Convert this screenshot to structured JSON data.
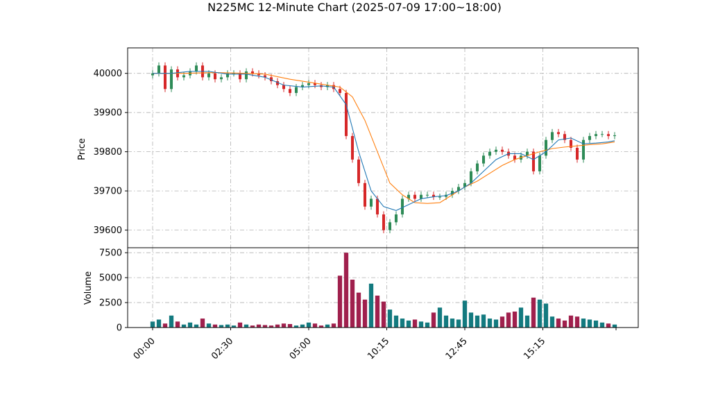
{
  "chart_data": {
    "type": "candlestick",
    "title": "N225MC 12-Minute Chart (2025-07-09 17:00~18:00)",
    "price_panel": {
      "ylabel": "Price",
      "ylim": [
        39555,
        40065
      ],
      "yticks": [
        39600,
        39700,
        39800,
        39900,
        40000
      ]
    },
    "volume_panel": {
      "ylabel": "Volume",
      "ylim": [
        0,
        8000
      ],
      "yticks": [
        0,
        2500,
        5000,
        7500
      ]
    },
    "x_ticks": [
      {
        "label": "00:00",
        "index": 0
      },
      {
        "label": "02:30",
        "index": 12.5
      },
      {
        "label": "05:00",
        "index": 25
      },
      {
        "label": "10:15",
        "index": 37.5
      },
      {
        "label": "12:45",
        "index": 50
      },
      {
        "label": "15:15",
        "index": 62.5
      }
    ],
    "grid": true,
    "colors": {
      "up": "#2e8b57",
      "down": "#d62728",
      "vol_up": "#137a7f",
      "vol_down": "#a0204d",
      "ma_short": "#1f77b4",
      "ma_long": "#ff7f0e"
    },
    "price_series": [
      {
        "i": 0,
        "v": 40000
      },
      {
        "i": 1,
        "v": 40020
      },
      {
        "i": 2,
        "v": 39960
      },
      {
        "i": 3,
        "v": 40010
      },
      {
        "i": 4,
        "v": 39990
      },
      {
        "i": 5,
        "v": 39995
      },
      {
        "i": 6,
        "v": 40005
      },
      {
        "i": 7,
        "v": 40020
      },
      {
        "i": 8,
        "v": 39990
      },
      {
        "i": 9,
        "v": 40000
      },
      {
        "i": 10,
        "v": 39985
      },
      {
        "i": 11,
        "v": 39990
      },
      {
        "i": 12,
        "v": 40000
      },
      {
        "i": 13,
        "v": 40000
      },
      {
        "i": 14,
        "v": 39985
      },
      {
        "i": 15,
        "v": 40005
      },
      {
        "i": 16,
        "v": 40000
      },
      {
        "i": 17,
        "v": 39995
      },
      {
        "i": 18,
        "v": 39990
      },
      {
        "i": 19,
        "v": 39980
      },
      {
        "i": 20,
        "v": 39970
      },
      {
        "i": 21,
        "v": 39960
      },
      {
        "i": 22,
        "v": 39950
      },
      {
        "i": 23,
        "v": 39965
      },
      {
        "i": 24,
        "v": 39970
      },
      {
        "i": 25,
        "v": 39975
      },
      {
        "i": 26,
        "v": 39970
      },
      {
        "i": 27,
        "v": 39965
      },
      {
        "i": 28,
        "v": 39970
      },
      {
        "i": 29,
        "v": 39960
      },
      {
        "i": 30,
        "v": 39950
      },
      {
        "i": 31,
        "v": 39840
      },
      {
        "i": 32,
        "v": 39780
      },
      {
        "i": 33,
        "v": 39720
      },
      {
        "i": 34,
        "v": 39660
      },
      {
        "i": 35,
        "v": 39680
      },
      {
        "i": 36,
        "v": 39640
      },
      {
        "i": 37,
        "v": 39600
      },
      {
        "i": 38,
        "v": 39620
      },
      {
        "i": 39,
        "v": 39640
      },
      {
        "i": 40,
        "v": 39680
      },
      {
        "i": 41,
        "v": 39690
      },
      {
        "i": 42,
        "v": 39680
      },
      {
        "i": 43,
        "v": 39690
      },
      {
        "i": 44,
        "v": 39690
      },
      {
        "i": 45,
        "v": 39685
      },
      {
        "i": 46,
        "v": 39685
      },
      {
        "i": 47,
        "v": 39690
      },
      {
        "i": 48,
        "v": 39700
      },
      {
        "i": 49,
        "v": 39710
      },
      {
        "i": 50,
        "v": 39720
      },
      {
        "i": 51,
        "v": 39750
      },
      {
        "i": 52,
        "v": 39770
      },
      {
        "i": 53,
        "v": 39790
      },
      {
        "i": 54,
        "v": 39800
      },
      {
        "i": 55,
        "v": 39805
      },
      {
        "i": 56,
        "v": 39800
      },
      {
        "i": 57,
        "v": 39790
      },
      {
        "i": 58,
        "v": 39780
      },
      {
        "i": 59,
        "v": 39790
      },
      {
        "i": 60,
        "v": 39800
      },
      {
        "i": 61,
        "v": 39750
      },
      {
        "i": 62,
        "v": 39790
      },
      {
        "i": 63,
        "v": 39830
      },
      {
        "i": 64,
        "v": 39850
      },
      {
        "i": 65,
        "v": 39845
      },
      {
        "i": 66,
        "v": 39830
      },
      {
        "i": 67,
        "v": 39810
      },
      {
        "i": 68,
        "v": 39780
      },
      {
        "i": 69,
        "v": 39830
      },
      {
        "i": 70,
        "v": 39840
      },
      {
        "i": 71,
        "v": 39845
      },
      {
        "i": 72,
        "v": 39845
      },
      {
        "i": 73,
        "v": 39840
      },
      {
        "i": 74,
        "v": 39842
      }
    ],
    "ma_short": [
      {
        "i": 0,
        "v": 40000
      },
      {
        "i": 3,
        "v": 40000
      },
      {
        "i": 6,
        "v": 40005
      },
      {
        "i": 9,
        "v": 40005
      },
      {
        "i": 12,
        "v": 39998
      },
      {
        "i": 15,
        "v": 39998
      },
      {
        "i": 18,
        "v": 39990
      },
      {
        "i": 21,
        "v": 39970
      },
      {
        "i": 24,
        "v": 39965
      },
      {
        "i": 27,
        "v": 39968
      },
      {
        "i": 29,
        "v": 39965
      },
      {
        "i": 31,
        "v": 39920
      },
      {
        "i": 33,
        "v": 39800
      },
      {
        "i": 35,
        "v": 39700
      },
      {
        "i": 37,
        "v": 39660
      },
      {
        "i": 39,
        "v": 39650
      },
      {
        "i": 41,
        "v": 39665
      },
      {
        "i": 43,
        "v": 39680
      },
      {
        "i": 45,
        "v": 39685
      },
      {
        "i": 47,
        "v": 39688
      },
      {
        "i": 49,
        "v": 39700
      },
      {
        "i": 51,
        "v": 39720
      },
      {
        "i": 53,
        "v": 39750
      },
      {
        "i": 55,
        "v": 39780
      },
      {
        "i": 57,
        "v": 39795
      },
      {
        "i": 59,
        "v": 39795
      },
      {
        "i": 61,
        "v": 39780
      },
      {
        "i": 63,
        "v": 39800
      },
      {
        "i": 65,
        "v": 39830
      },
      {
        "i": 67,
        "v": 39835
      },
      {
        "i": 69,
        "v": 39820
      },
      {
        "i": 71,
        "v": 39822
      },
      {
        "i": 73,
        "v": 39825
      },
      {
        "i": 74,
        "v": 39828
      }
    ],
    "ma_long": [
      {
        "i": 0,
        "v": 40000
      },
      {
        "i": 5,
        "v": 40000
      },
      {
        "i": 10,
        "v": 40002
      },
      {
        "i": 15,
        "v": 40000
      },
      {
        "i": 18,
        "v": 39998
      },
      {
        "i": 22,
        "v": 39985
      },
      {
        "i": 26,
        "v": 39975
      },
      {
        "i": 30,
        "v": 39965
      },
      {
        "i": 32,
        "v": 39940
      },
      {
        "i": 34,
        "v": 39880
      },
      {
        "i": 36,
        "v": 39800
      },
      {
        "i": 38,
        "v": 39720
      },
      {
        "i": 40,
        "v": 39690
      },
      {
        "i": 42,
        "v": 39670
      },
      {
        "i": 44,
        "v": 39668
      },
      {
        "i": 46,
        "v": 39670
      },
      {
        "i": 48,
        "v": 39690
      },
      {
        "i": 50,
        "v": 39710
      },
      {
        "i": 52,
        "v": 39725
      },
      {
        "i": 54,
        "v": 39745
      },
      {
        "i": 56,
        "v": 39765
      },
      {
        "i": 58,
        "v": 39780
      },
      {
        "i": 60,
        "v": 39790
      },
      {
        "i": 62,
        "v": 39800
      },
      {
        "i": 64,
        "v": 39808
      },
      {
        "i": 66,
        "v": 39812
      },
      {
        "i": 68,
        "v": 39815
      },
      {
        "i": 70,
        "v": 39818
      },
      {
        "i": 72,
        "v": 39820
      },
      {
        "i": 74,
        "v": 39825
      }
    ],
    "volume": [
      600,
      800,
      400,
      1200,
      600,
      300,
      500,
      300,
      900,
      400,
      300,
      250,
      300,
      200,
      500,
      300,
      200,
      300,
      250,
      200,
      300,
      400,
      350,
      200,
      300,
      500,
      400,
      200,
      300,
      400,
      5200,
      7500,
      4800,
      3500,
      2800,
      4400,
      3200,
      2600,
      1800,
      1200,
      900,
      700,
      800,
      600,
      500,
      1500,
      2000,
      1200,
      900,
      800,
      2700,
      1500,
      1200,
      1300,
      900,
      800,
      1100,
      1500,
      1600,
      2000,
      1200,
      3000,
      2800,
      2400,
      1100,
      900,
      700,
      1200,
      1100,
      900,
      800,
      700,
      500,
      400,
      300
    ]
  }
}
